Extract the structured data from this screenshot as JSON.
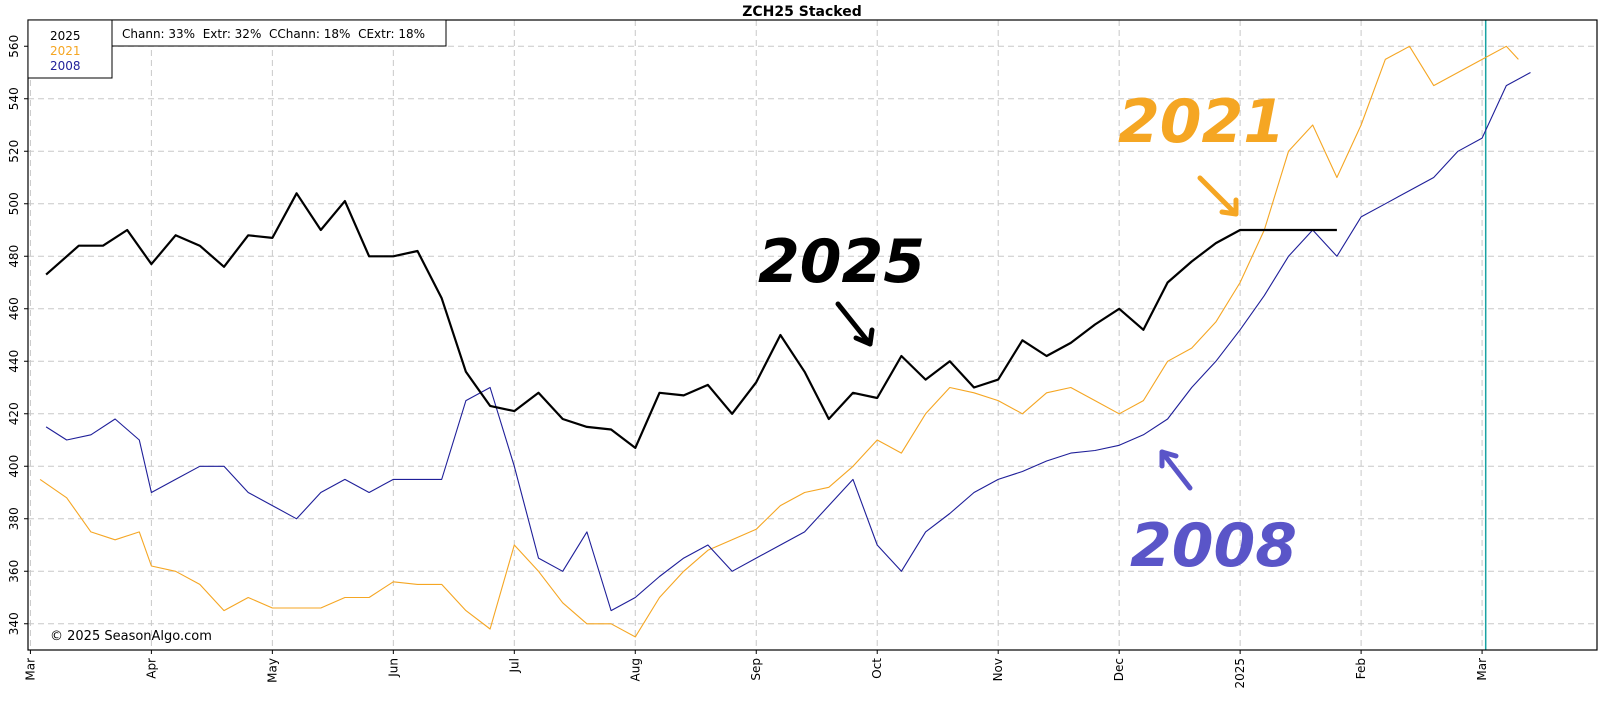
{
  "chart_data": {
    "type": "line",
    "title": "ZCH25  Stacked",
    "ylim": [
      330,
      570
    ],
    "yticks": [
      340,
      360,
      380,
      400,
      420,
      440,
      460,
      480,
      500,
      520,
      540,
      560
    ],
    "grid": true,
    "legend_position": "top-left",
    "x_tick_labels": [
      "Mar",
      "Apr",
      "May",
      "Jun",
      "Jul",
      "Aug",
      "Sep",
      "Oct",
      "Nov",
      "Dec",
      "2025",
      "Feb",
      "Mar"
    ],
    "x_tick_months": [
      0,
      1,
      2,
      3,
      4,
      5,
      6,
      7,
      8,
      9,
      10,
      11,
      12
    ],
    "x_range_months": [
      -0.02,
      12.95
    ],
    "x_unit": "months since Mar 1 of the prior year (stacked seasonal axis)",
    "current_marker_month": 12.03,
    "stats_label": "Chann: 33%  Extr: 32%  CChann: 18%  CExtr: 18%",
    "copyright": "© 2025 SeasonAlgo.com",
    "series": [
      {
        "name": "2025",
        "color": "#000000",
        "x": [
          0.13,
          0.4,
          0.6,
          0.8,
          1.0,
          1.2,
          1.4,
          1.6,
          1.8,
          2.0,
          2.2,
          2.4,
          2.6,
          2.8,
          3.0,
          3.2,
          3.4,
          3.6,
          3.8,
          4.0,
          4.2,
          4.4,
          4.6,
          4.8,
          5.0,
          5.2,
          5.4,
          5.6,
          5.8,
          6.0,
          6.2,
          6.4,
          6.6,
          6.8,
          7.0,
          7.2,
          7.4,
          7.6,
          7.8,
          8.0,
          8.2,
          8.4,
          8.6,
          8.8,
          9.0,
          9.2,
          9.4,
          9.6,
          9.8,
          10.0,
          10.2,
          10.4,
          10.6,
          10.8
        ],
        "values": [
          473,
          484,
          484,
          490,
          477,
          488,
          484,
          476,
          488,
          487,
          504,
          490,
          501,
          480,
          480,
          482,
          464,
          436,
          423,
          421,
          428,
          418,
          415,
          414,
          407,
          428,
          427,
          431,
          420,
          432,
          450,
          436,
          418,
          428,
          426,
          442,
          433,
          440,
          430,
          433,
          448,
          442,
          447,
          454,
          460,
          452,
          470,
          478,
          485,
          490,
          490,
          490,
          490,
          490
        ]
      },
      {
        "name": "2021",
        "color": "#f5a623",
        "x": [
          0.08,
          0.3,
          0.5,
          0.7,
          0.9,
          1.0,
          1.2,
          1.4,
          1.6,
          1.8,
          2.0,
          2.2,
          2.4,
          2.6,
          2.8,
          3.0,
          3.2,
          3.4,
          3.6,
          3.8,
          4.0,
          4.2,
          4.4,
          4.6,
          4.8,
          5.0,
          5.2,
          5.4,
          5.6,
          5.8,
          6.0,
          6.2,
          6.4,
          6.6,
          6.8,
          7.0,
          7.2,
          7.4,
          7.6,
          7.8,
          8.0,
          8.2,
          8.4,
          8.6,
          8.8,
          9.0,
          9.2,
          9.4,
          9.6,
          9.8,
          10.0,
          10.2,
          10.4,
          10.6,
          10.8,
          11.0,
          11.2,
          11.4,
          11.6,
          11.8,
          12.0,
          12.2,
          12.3
        ],
        "values": [
          395,
          388,
          375,
          372,
          375,
          362,
          360,
          355,
          345,
          350,
          346,
          346,
          346,
          350,
          350,
          356,
          355,
          355,
          345,
          338,
          370,
          360,
          348,
          340,
          340,
          335,
          350,
          360,
          368,
          372,
          376,
          385,
          390,
          392,
          400,
          410,
          405,
          420,
          430,
          428,
          425,
          420,
          428,
          430,
          425,
          420,
          425,
          440,
          445,
          455,
          470,
          490,
          520,
          530,
          510,
          530,
          555,
          560,
          545,
          550,
          555,
          560,
          555
        ]
      },
      {
        "name": "2008",
        "color": "#1f1f99",
        "x": [
          0.13,
          0.3,
          0.5,
          0.7,
          0.9,
          1.0,
          1.2,
          1.4,
          1.6,
          1.8,
          2.0,
          2.2,
          2.4,
          2.6,
          2.8,
          3.0,
          3.2,
          3.4,
          3.6,
          3.8,
          4.0,
          4.2,
          4.4,
          4.6,
          4.8,
          5.0,
          5.2,
          5.4,
          5.6,
          5.8,
          6.0,
          6.2,
          6.4,
          6.6,
          6.8,
          7.0,
          7.2,
          7.4,
          7.6,
          7.8,
          8.0,
          8.2,
          8.4,
          8.6,
          8.8,
          9.0,
          9.2,
          9.4,
          9.6,
          9.8,
          10.0,
          10.2,
          10.4,
          10.6,
          10.8,
          11.0,
          11.2,
          11.4,
          11.6,
          11.8,
          12.0,
          12.2,
          12.4
        ],
        "values": [
          415,
          410,
          412,
          418,
          410,
          390,
          395,
          400,
          400,
          390,
          385,
          380,
          390,
          395,
          390,
          395,
          395,
          395,
          425,
          430,
          400,
          365,
          360,
          375,
          345,
          350,
          358,
          365,
          370,
          360,
          365,
          370,
          375,
          385,
          395,
          370,
          360,
          375,
          382,
          390,
          395,
          398,
          402,
          405,
          406,
          408,
          412,
          418,
          430,
          440,
          452,
          465,
          480,
          490,
          480,
          495,
          500,
          505,
          510,
          520,
          525,
          545,
          550
        ]
      }
    ]
  },
  "legend": {
    "entries": [
      {
        "label": "2025",
        "color": "#000000"
      },
      {
        "label": "2021",
        "color": "#f5a623"
      },
      {
        "label": "2008",
        "color": "#1f1f99"
      }
    ]
  },
  "annotations": [
    {
      "text": "2021",
      "color": "#f5a623"
    },
    {
      "text": "2025",
      "color": "#000000"
    },
    {
      "text": "2008",
      "color": "#5a55c8"
    }
  ],
  "colors": {
    "grid": "#c8c8c8",
    "axis": "#000000",
    "current_marker": "#1aa3a3"
  }
}
